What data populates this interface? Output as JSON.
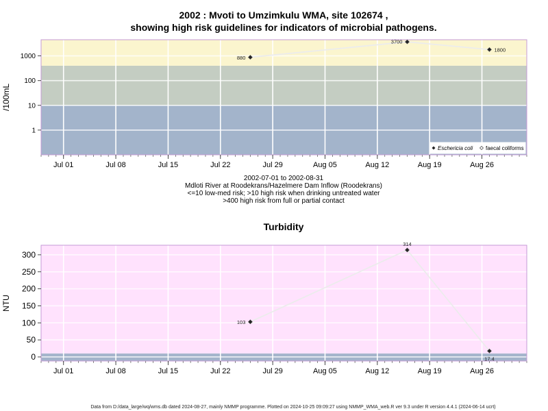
{
  "chart_data": [
    {
      "type": "line",
      "title_line1": "2002 : Mvoti to Umzimkulu WMA, site 102674 ,",
      "title_line2": "showing high risk guidelines for indicators of microbial pathogens.",
      "ylabel": "/100mL",
      "yscale": "log",
      "ylim": [
        0.1,
        4500
      ],
      "yticks": [
        1,
        10,
        100,
        1000
      ],
      "ytick_labels": [
        "1",
        "10",
        "100",
        "1000"
      ],
      "xlim": [
        "2002-06-28",
        "2002-09-01"
      ],
      "xticks": [
        "2002-07-01",
        "2002-07-08",
        "2002-07-15",
        "2002-07-22",
        "2002-07-29",
        "2002-08-05",
        "2002-08-12",
        "2002-08-19",
        "2002-08-26"
      ],
      "xtick_labels": [
        "Jul 01",
        "Jul 08",
        "Jul 15",
        "Jul 22",
        "Jul 29",
        "Aug 05",
        "Aug 12",
        "Aug 19",
        "Aug 26"
      ],
      "bands": [
        {
          "from": 0.1,
          "to": 10,
          "color": "#a3b4cb"
        },
        {
          "from": 10,
          "to": 400,
          "color": "#c4cdc2"
        },
        {
          "from": 400,
          "to": 4500,
          "color": "#fbf5ce"
        }
      ],
      "series": [
        {
          "name": "Eschericia coli",
          "marker": "filled-diamond",
          "points": [
            {
              "x": "2002-07-26",
              "y": 880,
              "label": "880"
            },
            {
              "x": "2002-08-16",
              "y": 3700,
              "label": "3700"
            },
            {
              "x": "2002-08-27",
              "y": 1800,
              "label": "1800"
            }
          ]
        }
      ],
      "legend": {
        "placement": "bottom-right",
        "entries": [
          "Eschericia coli",
          "faecal coliforms"
        ]
      },
      "caption": [
        "2002-07-01 to 2002-08-31",
        "Mdloti River at Roodekrans/Hazelmere Dam Inflow (Roodekrans)",
        "<=10 low-med risk; >10 high risk when drinking untreated water",
        ">400 high risk from full or partial contact"
      ]
    },
    {
      "type": "line",
      "title": "Turbidity",
      "ylabel": "NTU",
      "yscale": "linear",
      "ylim": [
        -12,
        328
      ],
      "yticks": [
        0,
        50,
        100,
        150,
        200,
        250,
        300
      ],
      "ytick_labels": [
        "0",
        "50",
        "100",
        "150",
        "200",
        "250",
        "300"
      ],
      "xlim": [
        "2002-06-28",
        "2002-09-01"
      ],
      "xticks": [
        "2002-07-01",
        "2002-07-08",
        "2002-07-15",
        "2002-07-22",
        "2002-07-29",
        "2002-08-05",
        "2002-08-12",
        "2002-08-19",
        "2002-08-26"
      ],
      "xtick_labels": [
        "Jul 01",
        "Jul 08",
        "Jul 15",
        "Jul 22",
        "Jul 29",
        "Aug 05",
        "Aug 12",
        "Aug 19",
        "Aug 26"
      ],
      "bands": [
        {
          "from": -12,
          "to": 10,
          "color": "#a3b4cb"
        },
        {
          "from": 10,
          "to": 328,
          "color": "#ffe2fd"
        }
      ],
      "series": [
        {
          "marker": "filled-diamond",
          "points": [
            {
              "x": "2002-07-26",
              "y": 103,
              "label": "103"
            },
            {
              "x": "2002-08-16",
              "y": 314,
              "label": "314"
            },
            {
              "x": "2002-08-27",
              "y": 17.4,
              "label": "17.4"
            }
          ]
        }
      ]
    }
  ],
  "footer": "Data from D:/data_large/wq/wms.db dated 2024-08-27, mainly NMMP programme. Plotted on 2024-10-25 09:09:27 using NMMP_WMA_web.R ver 9.3 under R version 4.4.1 (2024-06-14 ucrt)"
}
